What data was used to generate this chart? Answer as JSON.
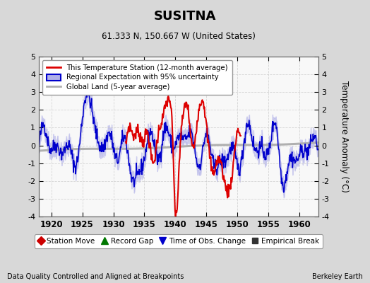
{
  "title": "SUSITNA",
  "subtitle": "61.333 N, 150.667 W (United States)",
  "xlabel_bottom": "Data Quality Controlled and Aligned at Breakpoints",
  "xlabel_right": "Berkeley Earth",
  "ylabel": "Temperature Anomaly (°C)",
  "xlim": [
    1918,
    1963
  ],
  "ylim": [
    -4,
    5
  ],
  "yticks": [
    -4,
    -3,
    -2,
    -1,
    0,
    1,
    2,
    3,
    4,
    5
  ],
  "xticks": [
    1920,
    1925,
    1930,
    1935,
    1940,
    1945,
    1950,
    1955,
    1960
  ],
  "bg_color": "#d8d8d8",
  "plot_bg_color": "#f8f8f8",
  "grid_color": "#cccccc",
  "red_line_color": "#dd0000",
  "blue_line_color": "#0000cc",
  "blue_fill_color": "#b0b0e8",
  "gray_line_color": "#b0b0b0",
  "legend_items": [
    {
      "label": "This Temperature Station (12-month average)",
      "color": "#dd0000",
      "lw": 2
    },
    {
      "label": "Regional Expectation with 95% uncertainty",
      "color": "#0000cc",
      "lw": 1.5
    },
    {
      "label": "Global Land (5-year average)",
      "color": "#b0b0b0",
      "lw": 2
    }
  ],
  "bottom_legend": [
    {
      "label": "Station Move",
      "color": "#cc0000",
      "marker": "D"
    },
    {
      "label": "Record Gap",
      "color": "#007700",
      "marker": "^"
    },
    {
      "label": "Time of Obs. Change",
      "color": "#0000cc",
      "marker": "v"
    },
    {
      "label": "Empirical Break",
      "color": "#333333",
      "marker": "s"
    }
  ],
  "seed": 42
}
